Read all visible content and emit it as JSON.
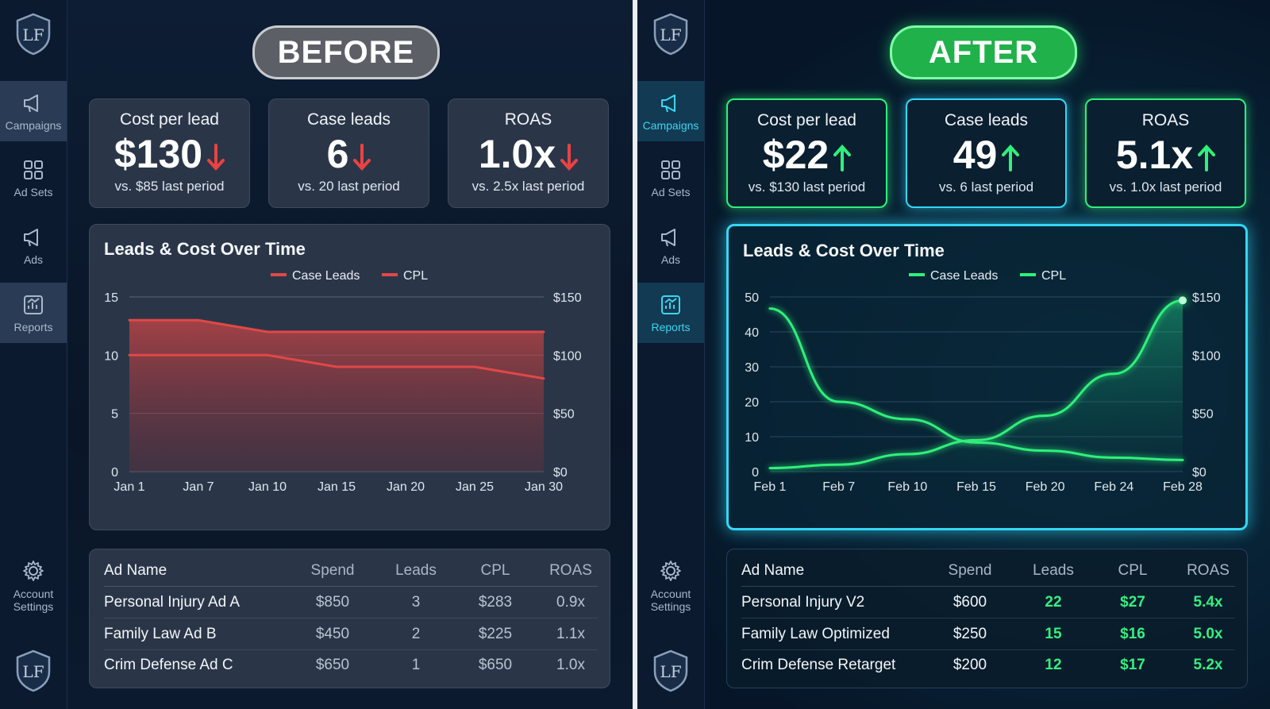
{
  "sidebar": {
    "logo_text": "LF",
    "items": [
      {
        "label": "Campaigns",
        "icon": "megaphone-icon"
      },
      {
        "label": "Ad Sets",
        "icon": "grid-icon"
      },
      {
        "label": "Ads",
        "icon": "megaphone-icon"
      },
      {
        "label": "Reports",
        "icon": "chart-report-icon"
      }
    ],
    "settings_label": "Account Settings"
  },
  "before": {
    "badge": "BEFORE",
    "kpis": [
      {
        "label": "Cost per lead",
        "value": "$130",
        "trend": "down",
        "sub": "vs. $85 last period"
      },
      {
        "label": "Case leads",
        "value": "6",
        "trend": "down",
        "sub": "vs. 20 last period"
      },
      {
        "label": "ROAS",
        "value": "1.0x",
        "trend": "down",
        "sub": "vs. 2.5x last period"
      }
    ],
    "chart_title": "Leads & Cost Over Time",
    "table": {
      "headers": [
        "Ad Name",
        "Spend",
        "Leads",
        "CPL",
        "ROAS"
      ],
      "rows": [
        [
          "Personal Injury Ad A",
          "$850",
          "3",
          "$283",
          "0.9x"
        ],
        [
          "Family Law Ad B",
          "$450",
          "2",
          "$225",
          "1.1x"
        ],
        [
          "Crim Defense Ad C",
          "$650",
          "1",
          "$650",
          "1.0x"
        ]
      ]
    }
  },
  "after": {
    "badge": "AFTER",
    "kpis": [
      {
        "label": "Cost per lead",
        "value": "$22",
        "trend": "up",
        "sub": "vs. $130 last period"
      },
      {
        "label": "Case leads",
        "value": "49",
        "trend": "up",
        "sub": "vs. 6 last period"
      },
      {
        "label": "ROAS",
        "value": "5.1x",
        "trend": "up",
        "sub": "vs. 1.0x last period"
      }
    ],
    "chart_title": "Leads & Cost Over Time",
    "table": {
      "headers": [
        "Ad Name",
        "Spend",
        "Leads",
        "CPL",
        "ROAS"
      ],
      "rows": [
        [
          "Personal Injury V2",
          "$600",
          "22",
          "$27",
          "5.4x"
        ],
        [
          "Family Law Optimized",
          "$250",
          "15",
          "$16",
          "5.0x"
        ],
        [
          "Crim Defense Retarget",
          "$200",
          "12",
          "$17",
          "5.2x"
        ]
      ]
    }
  },
  "colors": {
    "down": "#e84343",
    "up": "#2ff07a",
    "before_line": "#e04848",
    "after_line": "#2ff07a"
  },
  "chart_data": [
    {
      "type": "area",
      "title": "Leads & Cost Over Time",
      "x": [
        "Jan 1",
        "Jan 7",
        "Jan 10",
        "Jan 15",
        "Jan 20",
        "Jan 25",
        "Jan 30"
      ],
      "y_left": {
        "ticks": [
          "0",
          "5",
          "10",
          "15"
        ],
        "range": [
          0,
          15
        ]
      },
      "y_right": {
        "ticks": [
          "$0",
          "$50",
          "$100",
          "$150"
        ],
        "range": [
          0,
          150
        ]
      },
      "series": [
        {
          "name": "Case Leads",
          "axis": "left",
          "values": [
            13,
            13,
            12,
            12,
            12,
            12,
            12
          ]
        },
        {
          "name": "CPL",
          "axis": "right",
          "values": [
            100,
            100,
            100,
            90,
            90,
            90,
            80
          ]
        }
      ],
      "legend": "top-center"
    },
    {
      "type": "area",
      "title": "Leads & Cost Over Time",
      "x": [
        "Feb 1",
        "Feb 7",
        "Feb 10",
        "Feb 15",
        "Feb 20",
        "Feb 24",
        "Feb 28"
      ],
      "y_left": {
        "ticks": [
          "0",
          "10",
          "20",
          "30",
          "40",
          "50"
        ],
        "range": [
          0,
          50
        ]
      },
      "y_right": {
        "ticks": [
          "$0",
          "$50",
          "$100",
          "$150"
        ],
        "range": [
          0,
          150
        ]
      },
      "series": [
        {
          "name": "Case Leads",
          "axis": "left",
          "values": [
            1,
            2,
            5,
            9,
            16,
            28,
            49
          ]
        },
        {
          "name": "CPL",
          "axis": "right",
          "values": [
            140,
            60,
            45,
            25,
            18,
            12,
            10
          ]
        }
      ],
      "legend": "top-center"
    }
  ]
}
